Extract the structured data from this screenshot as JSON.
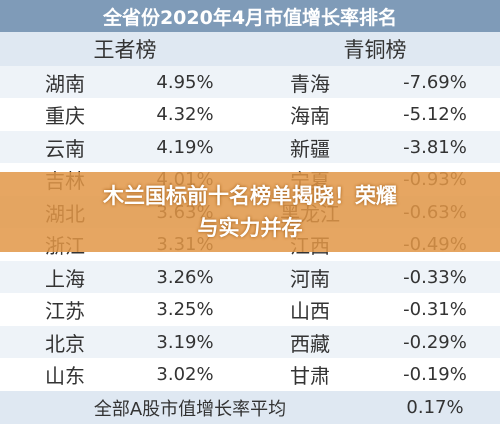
{
  "title": "全省份2020年4月市值增长率排名",
  "table": {
    "headers": [
      "王者榜",
      "青铜榜"
    ],
    "rows": [
      [
        "湖南",
        "4.95%",
        "青海",
        "-7.69%"
      ],
      [
        "重庆",
        "4.32%",
        "海南",
        "-5.12%"
      ],
      [
        "云南",
        "4.19%",
        "新疆",
        "-3.81%"
      ],
      [
        "吉林",
        "4.01%",
        "宁夏",
        "-0.93%"
      ],
      [
        "湖北",
        "3.63%",
        "黑龙江",
        "-0.63%"
      ],
      [
        "浙江",
        "3.31%",
        "江西",
        "-0.49%"
      ],
      [
        "上海",
        "3.26%",
        "河南",
        "-0.33%"
      ],
      [
        "江苏",
        "3.25%",
        "山西",
        "-0.31%"
      ],
      [
        "北京",
        "3.19%",
        "西藏",
        "-0.29%"
      ],
      [
        "山东",
        "3.02%",
        "甘肃",
        "-0.19%"
      ]
    ],
    "footer": [
      "全部A股市值增长率平均",
      "0.17%"
    ]
  },
  "banner": "木兰国标前十名榜单揭晓！荣耀与实力并存"
}
